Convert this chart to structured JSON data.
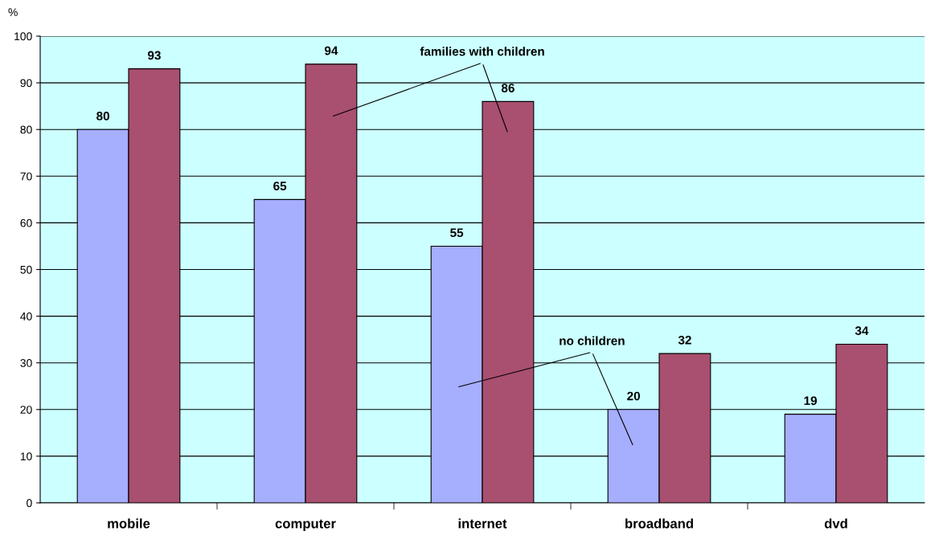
{
  "chart_data": {
    "type": "bar",
    "ylabel": "%",
    "categories": [
      "mobile",
      "computer",
      "internet",
      "broadband",
      "dvd"
    ],
    "series": [
      {
        "name": "no children",
        "color": "#a6aefe",
        "values": [
          80,
          65,
          55,
          20,
          19
        ]
      },
      {
        "name": "families with children",
        "color": "#a94f6f",
        "values": [
          93,
          94,
          86,
          32,
          34
        ]
      }
    ],
    "ylim": [
      0,
      100
    ],
    "yticks": [
      0,
      10,
      20,
      30,
      40,
      50,
      60,
      70,
      80,
      90,
      100
    ],
    "grid": "y",
    "data_labels": true,
    "legend": false
  }
}
